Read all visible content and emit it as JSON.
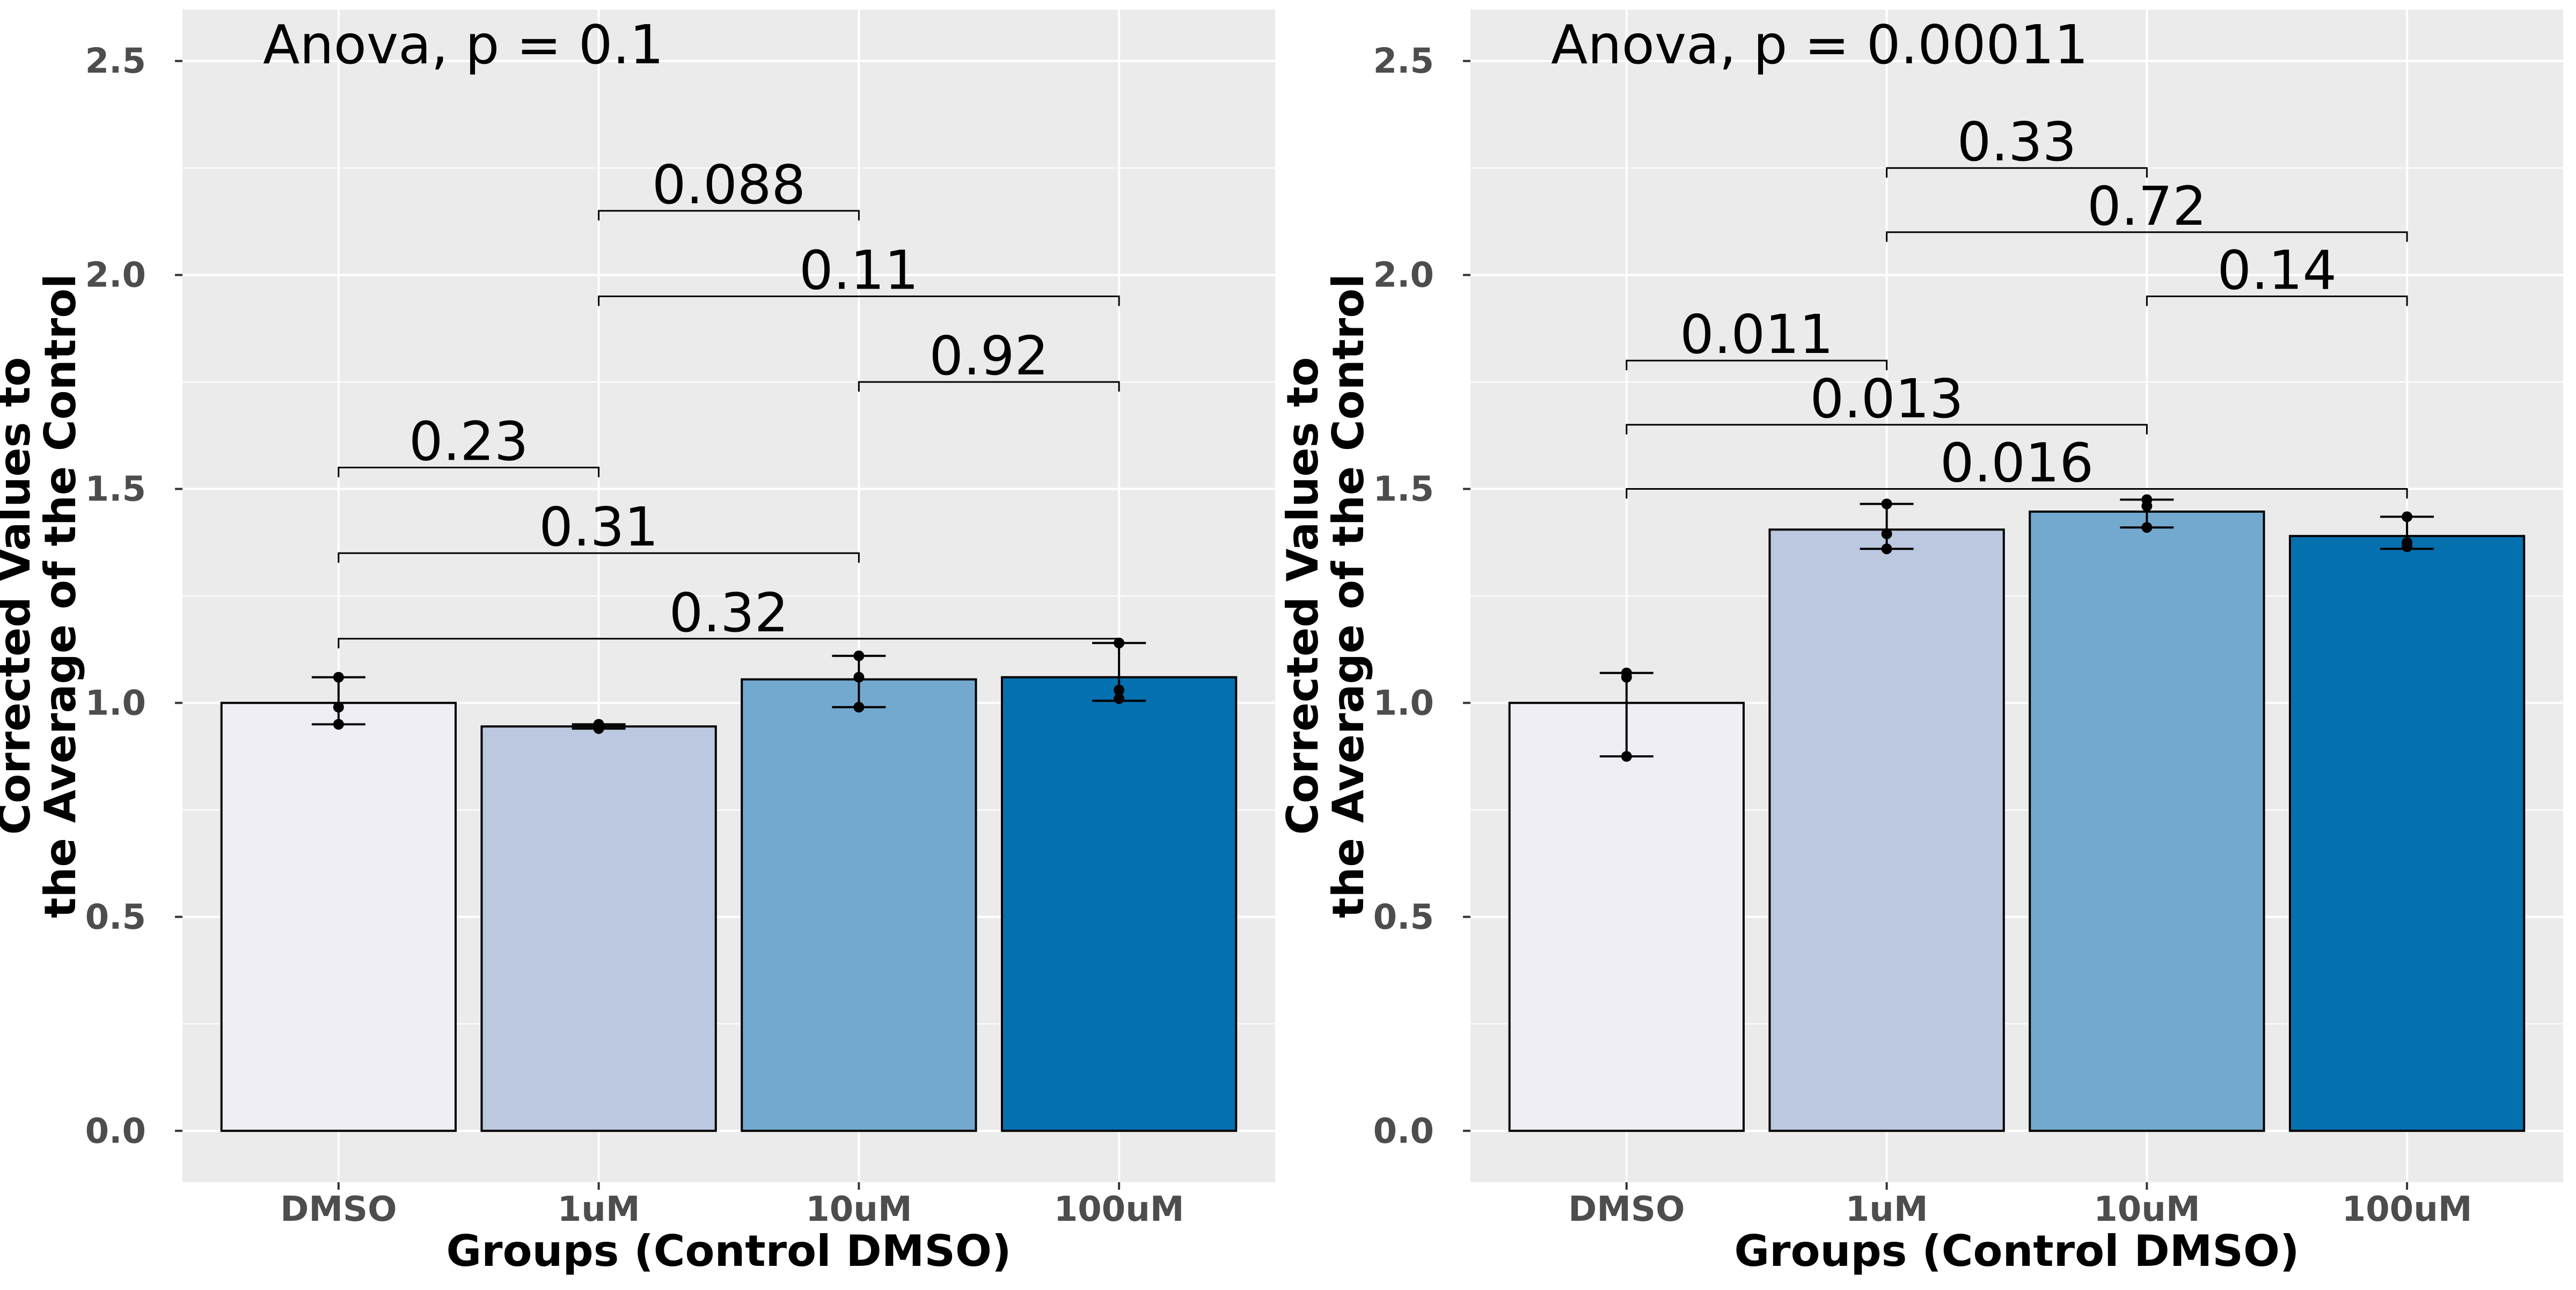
{
  "colors": {
    "panel_bg": "#ebebeb",
    "grid": "#ffffff",
    "bar_outline": "#000000",
    "fill_DMSO": "#f0eef5",
    "fill_1uM": "#bcc8e0",
    "fill_10uM": "#74a9cf",
    "fill_100uM": "#0570b0"
  },
  "chart_data": [
    {
      "type": "bar",
      "annotation": "Anova, p = 0.1",
      "xlabel": "Groups (Control DMSO)",
      "ylabel_line1": "Corrected Values to",
      "ylabel_line2": "the Average of the Control",
      "categories": [
        "DMSO",
        "1uM",
        "10uM",
        "100uM"
      ],
      "values": [
        1.0,
        0.945,
        1.055,
        1.06
      ],
      "error_low": [
        0.95,
        0.94,
        0.99,
        1.005
      ],
      "error_high": [
        1.06,
        0.95,
        1.11,
        1.14
      ],
      "points": [
        [
          0.95,
          0.99,
          1.06
        ],
        [
          0.94,
          0.945,
          0.95
        ],
        [
          0.99,
          1.06,
          1.11
        ],
        [
          1.01,
          1.03,
          1.14
        ]
      ],
      "ylim": [
        -0.12,
        2.62
      ],
      "yticks": [
        "0.0",
        "0.5",
        "1.0",
        "1.5",
        "2.0",
        "2.5"
      ],
      "ytick_values": [
        0.0,
        0.5,
        1.0,
        1.5,
        2.0,
        2.5
      ],
      "comparisons": [
        {
          "from": "DMSO",
          "to": "1uM",
          "y": 1.55,
          "label": "0.23"
        },
        {
          "from": "DMSO",
          "to": "10uM",
          "y": 1.35,
          "label": "0.31"
        },
        {
          "from": "DMSO",
          "to": "100uM",
          "y": 1.15,
          "label": "0.32"
        },
        {
          "from": "1uM",
          "to": "10uM",
          "y": 2.15,
          "label": "0.088"
        },
        {
          "from": "1uM",
          "to": "100uM",
          "y": 1.95,
          "label": "0.11"
        },
        {
          "from": "10uM",
          "to": "100uM",
          "y": 1.75,
          "label": "0.92"
        }
      ]
    },
    {
      "type": "bar",
      "annotation": "Anova, p = 0.00011",
      "xlabel": "Groups (Control DMSO)",
      "ylabel_line1": "Corrected Values to",
      "ylabel_line2": "the Average of the Control",
      "categories": [
        "DMSO",
        "1uM",
        "10uM",
        "100uM"
      ],
      "values": [
        1.0,
        1.405,
        1.447,
        1.39
      ],
      "error_low": [
        0.875,
        1.36,
        1.41,
        1.36
      ],
      "error_high": [
        1.07,
        1.465,
        1.475,
        1.435
      ],
      "points": [
        [
          0.875,
          1.06,
          1.07
        ],
        [
          1.36,
          1.395,
          1.465
        ],
        [
          1.41,
          1.46,
          1.475
        ],
        [
          1.365,
          1.375,
          1.435
        ]
      ],
      "ylim": [
        -0.12,
        2.62
      ],
      "yticks": [
        "0.0",
        "0.5",
        "1.0",
        "1.5",
        "2.0",
        "2.5"
      ],
      "ytick_values": [
        0.0,
        0.5,
        1.0,
        1.5,
        2.0,
        2.5
      ],
      "comparisons": [
        {
          "from": "DMSO",
          "to": "1uM",
          "y": 1.8,
          "label": "0.011"
        },
        {
          "from": "DMSO",
          "to": "10uM",
          "y": 1.65,
          "label": "0.013"
        },
        {
          "from": "DMSO",
          "to": "100uM",
          "y": 1.5,
          "label": "0.016"
        },
        {
          "from": "1uM",
          "to": "10uM",
          "y": 2.25,
          "label": "0.33"
        },
        {
          "from": "1uM",
          "to": "100uM",
          "y": 2.1,
          "label": "0.72"
        },
        {
          "from": "10uM",
          "to": "100uM",
          "y": 1.95,
          "label": "0.14"
        }
      ]
    }
  ]
}
